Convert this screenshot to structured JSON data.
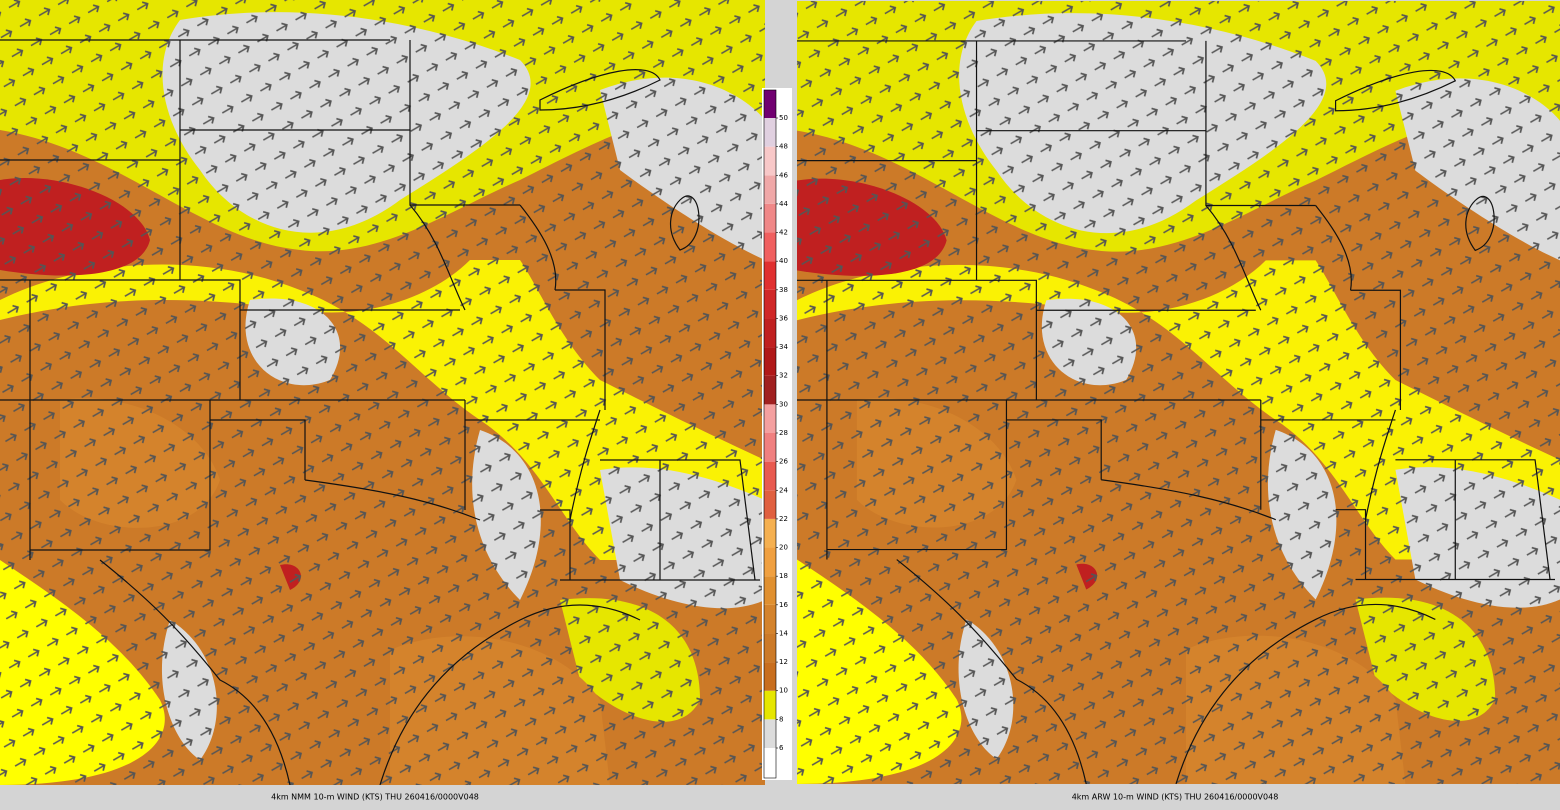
{
  "panels": [
    {
      "caption": "4km NMM 10-m WIND (KTS) THU 260416/0000V048"
    },
    {
      "caption": "4km ARW 10-m WIND (KTS) THU 260416/0000V048"
    }
  ],
  "colorbar": {
    "ticks": [
      6,
      8,
      10,
      12,
      14,
      16,
      18,
      20,
      22,
      24,
      26,
      28,
      30,
      32,
      34,
      36,
      38,
      40,
      42,
      44,
      46,
      48,
      50
    ],
    "colors": [
      "#ffffff",
      "#dcdcdc",
      "#e6e600",
      "#c86e1e",
      "#cc7a28",
      "#d4832c",
      "#e09030",
      "#f0a040",
      "#f5b050",
      "#e06040",
      "#e85a50",
      "#f08080",
      "#f4a0a0",
      "#a02020",
      "#b01818",
      "#c02020",
      "#d02828",
      "#e03030",
      "#f06060",
      "#f08888",
      "#f0a8a8",
      "#f8c8c8",
      "#e0d0e0",
      "#700070"
    ]
  }
}
